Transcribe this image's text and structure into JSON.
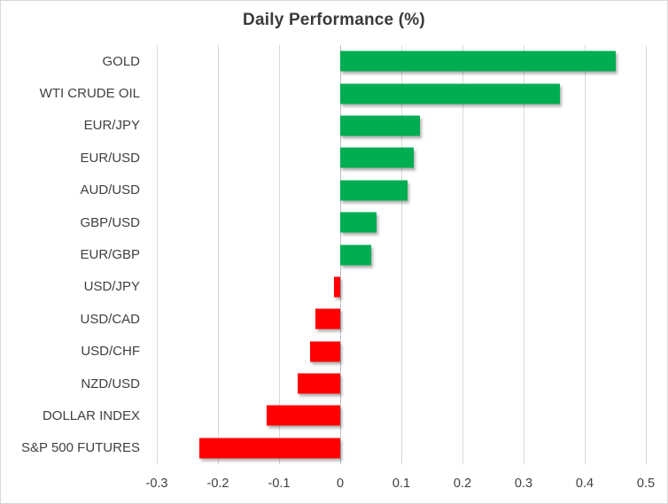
{
  "window": {
    "background": "#FFFFFF",
    "border_color": "#D9D9D9"
  },
  "chart_data": {
    "type": "bar",
    "orientation": "horizontal",
    "title": "Daily Performance (%)",
    "categories": [
      "GOLD",
      "WTI CRUDE OIL",
      "EUR/JPY",
      "EUR/USD",
      "AUD/USD",
      "GBP/USD",
      "EUR/GBP",
      "USD/JPY",
      "USD/CAD",
      "USD/CHF",
      "NZD/USD",
      "DOLLAR INDEX",
      "S&P 500 FUTURES"
    ],
    "values": [
      0.45,
      0.36,
      0.13,
      0.12,
      0.11,
      0.06,
      0.05,
      -0.01,
      -0.04,
      -0.05,
      -0.07,
      -0.12,
      -0.23
    ],
    "xlabel": "",
    "ylabel": "",
    "xlim": [
      -0.3,
      0.5
    ],
    "x_ticks": [
      -0.3,
      -0.2,
      -0.1,
      0,
      0.1,
      0.2,
      0.3,
      0.4,
      0.5
    ],
    "x_tick_labels": [
      "-0.3",
      "-0.2",
      "-0.1",
      "0",
      "0.1",
      "0.2",
      "0.3",
      "0.4",
      "0.5"
    ],
    "grid": "vertical-gridlines-on",
    "legend": "none",
    "colors": {
      "positive": "#00AD50",
      "negative": "#FF0000",
      "gridline": "#D9D9D9",
      "zero_axis": "#BFBFBF",
      "title_text": "#3A3A3A",
      "label_text": "#404040"
    }
  }
}
